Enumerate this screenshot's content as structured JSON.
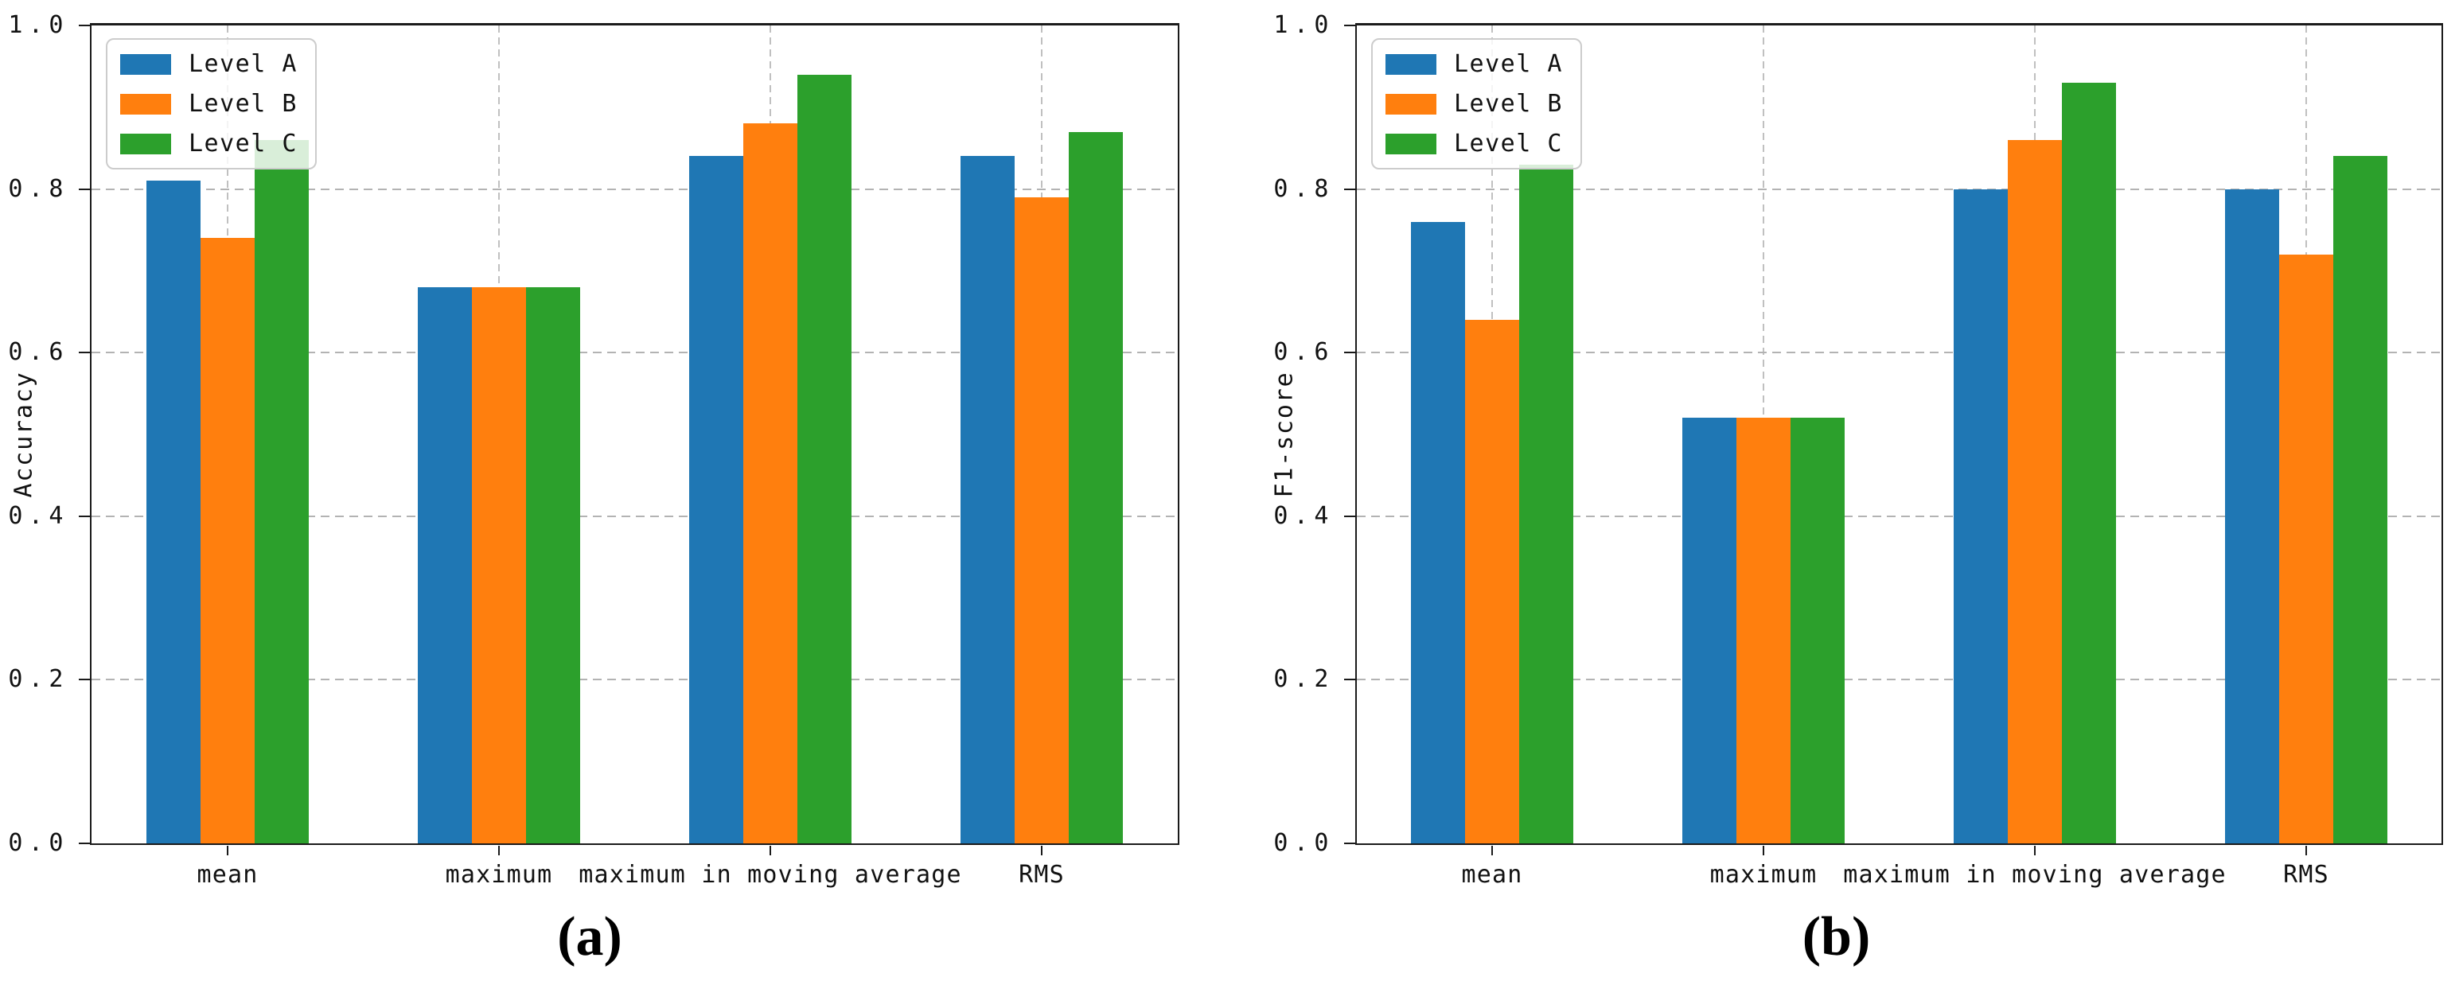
{
  "figure": {
    "background": "#ffffff",
    "panel_captions": [
      "(a)",
      "(b)"
    ]
  },
  "colors": {
    "series_blue": "#1f77b4",
    "series_orange": "#ff7f0e",
    "series_green": "#2ca02c",
    "grid": "#b3b3b3",
    "spine": "#1a1a1a",
    "legend_border": "#cccccc"
  },
  "chart_data": [
    {
      "type": "bar",
      "panel_caption": "(a)",
      "ylabel": "Accuracy",
      "categories": [
        "mean",
        "maximum",
        "maximum in moving average",
        "RMS"
      ],
      "series": [
        {
          "name": "Level A",
          "color": "#1f77b4",
          "values": [
            0.81,
            0.68,
            0.84,
            0.84
          ]
        },
        {
          "name": "Level B",
          "color": "#ff7f0e",
          "values": [
            0.74,
            0.68,
            0.88,
            0.79
          ]
        },
        {
          "name": "Level C",
          "color": "#2ca02c",
          "values": [
            0.86,
            0.68,
            0.94,
            0.87
          ]
        }
      ],
      "ylim": [
        0.0,
        1.0
      ],
      "ytick_values": [
        0.0,
        0.2,
        0.4,
        0.6,
        0.8,
        1.0
      ],
      "ytick_labels": [
        "0.0",
        "0.2",
        "0.4",
        "0.6",
        "0.8",
        "1.0"
      ],
      "grid": true,
      "bar_width_fraction": 0.2,
      "legend": {
        "position": "upper left",
        "labels": [
          "Level A",
          "Level B",
          "Level C"
        ]
      }
    },
    {
      "type": "bar",
      "panel_caption": "(b)",
      "ylabel": "F1-score",
      "categories": [
        "mean",
        "maximum",
        "maximum in moving average",
        "RMS"
      ],
      "series": [
        {
          "name": "Level A",
          "color": "#1f77b4",
          "values": [
            0.76,
            0.52,
            0.8,
            0.8
          ]
        },
        {
          "name": "Level B",
          "color": "#ff7f0e",
          "values": [
            0.64,
            0.52,
            0.86,
            0.72
          ]
        },
        {
          "name": "Level C",
          "color": "#2ca02c",
          "values": [
            0.83,
            0.52,
            0.93,
            0.84
          ]
        }
      ],
      "ylim": [
        0.0,
        1.0
      ],
      "ytick_values": [
        0.0,
        0.2,
        0.4,
        0.6,
        0.8,
        1.0
      ],
      "ytick_labels": [
        "0.0",
        "0.2",
        "0.4",
        "0.6",
        "0.8",
        "1.0"
      ],
      "grid": true,
      "bar_width_fraction": 0.2,
      "legend": {
        "position": "upper left",
        "labels": [
          "Level A",
          "Level B",
          "Level C"
        ]
      }
    }
  ]
}
